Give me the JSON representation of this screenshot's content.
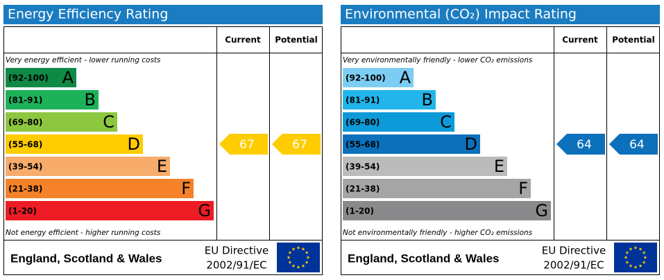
{
  "panels": [
    {
      "title": "Energy Efficiency Rating",
      "header": {
        "current": "Current",
        "potential": "Potential"
      },
      "top_note": "Very energy efficient - lower running costs",
      "bottom_note": "Not energy efficient - higher running costs",
      "bands": [
        {
          "range": "(92-100)",
          "letter": "A",
          "color": "#0f8a46"
        },
        {
          "range": "(81-91)",
          "letter": "B",
          "color": "#1db25a"
        },
        {
          "range": "(69-80)",
          "letter": "C",
          "color": "#8dc63f"
        },
        {
          "range": "(55-68)",
          "letter": "D",
          "color": "#ffcc00"
        },
        {
          "range": "(39-54)",
          "letter": "E",
          "color": "#f7ac6b"
        },
        {
          "range": "(21-38)",
          "letter": "F",
          "color": "#f5822a"
        },
        {
          "range": "(1-20)",
          "letter": "G",
          "color": "#ee1c25"
        }
      ],
      "current": 67,
      "potential": 67,
      "footer": {
        "region": "England, Scotland & Wales",
        "directive": "EU Directive",
        "directive_number": "2002/91/EC"
      }
    },
    {
      "title": "Environmental (CO₂) Impact Rating",
      "header": {
        "current": "Current",
        "potential": "Potential"
      },
      "top_note": "Very environmentally friendly - lower CO₂ emissions",
      "bottom_note": "Not environmentally friendly - higher CO₂ emissions",
      "bands": [
        {
          "range": "(92-100)",
          "letter": "A",
          "color": "#7dcdf2"
        },
        {
          "range": "(81-91)",
          "letter": "B",
          "color": "#22b5eb"
        },
        {
          "range": "(69-80)",
          "letter": "C",
          "color": "#0d9ad8"
        },
        {
          "range": "(55-68)",
          "letter": "D",
          "color": "#0c70bb"
        },
        {
          "range": "(39-54)",
          "letter": "E",
          "color": "#bbbbbb"
        },
        {
          "range": "(21-38)",
          "letter": "F",
          "color": "#a5a5a6"
        },
        {
          "range": "(1-20)",
          "letter": "G",
          "color": "#8a8a8c"
        }
      ],
      "current": 64,
      "potential": 64,
      "footer": {
        "region": "England, Scotland & Wales",
        "directive": "EU Directive",
        "directive_number": "2002/91/EC"
      }
    }
  ]
}
